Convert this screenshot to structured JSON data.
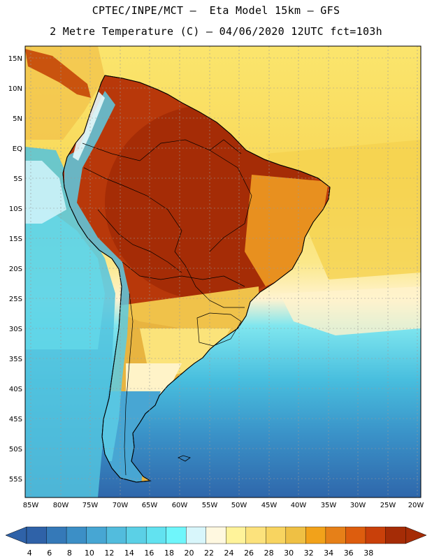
{
  "title": {
    "line1": "CPTEC/INPE/MCT –  Eta Model 15km – GFS",
    "line2": "2 Metre Temperature (C) – 04/06/2020 12UTC fct=103h"
  },
  "axes": {
    "lat_labels": [
      "15N",
      "10N",
      "5N",
      "EQ",
      "5S",
      "10S",
      "15S",
      "20S",
      "25S",
      "30S",
      "35S",
      "40S",
      "45S",
      "50S",
      "55S"
    ],
    "lon_labels": [
      "85W",
      "80W",
      "75W",
      "70W",
      "65W",
      "60W",
      "55W",
      "50W",
      "45W",
      "40W",
      "35W",
      "30W",
      "25W",
      "20W"
    ]
  },
  "colorbar": {
    "labels": [
      "4",
      "6",
      "8",
      "10",
      "12",
      "14",
      "16",
      "18",
      "20",
      "22",
      "24",
      "26",
      "28",
      "30",
      "32",
      "34",
      "36",
      "38"
    ],
    "colors": [
      "#2f62a8",
      "#3579b8",
      "#3c8fc6",
      "#47a6d3",
      "#52bcdd",
      "#5bd0e6",
      "#62e2f0",
      "#6ff6fb",
      "#d8f6fb",
      "#fff8e0",
      "#fff39a",
      "#fce27c",
      "#f8d460",
      "#efc044",
      "#f2a21a",
      "#e68018",
      "#dd5d0e",
      "#c9400a",
      "#a52c06"
    ],
    "low_arrow_color": "#2f62a8",
    "high_arrow_color": "#a52c06"
  }
}
